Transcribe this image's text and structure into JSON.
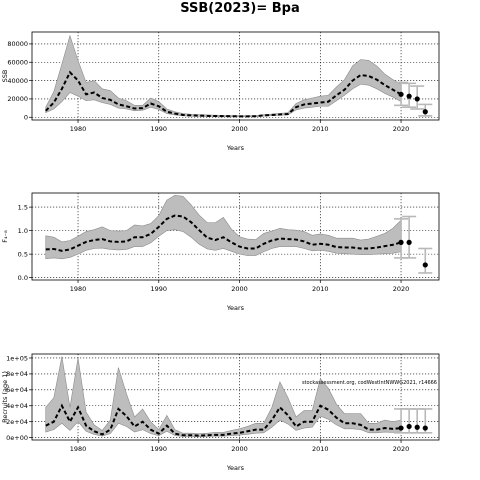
{
  "title": "SSB(2023)= Bpa",
  "colors": {
    "band": "#bdbdbd",
    "band_edge": "#8c8c8c",
    "line": "#000000",
    "errorbar": "#b8b8b8",
    "grid": "#000000"
  },
  "chart_data": [
    {
      "type": "line",
      "name": "ssb",
      "xlabel": "Years",
      "ylabel": "SSB",
      "xlim": [
        1974.3,
        2024.7
      ],
      "ylim": [
        -3000,
        93000
      ],
      "xticks": [
        1980,
        1990,
        2000,
        2010,
        2020
      ],
      "yticks": [
        0,
        20000,
        40000,
        60000,
        80000
      ],
      "ytick_labels": [
        "0",
        "20000",
        "40000",
        "60000",
        "80000"
      ],
      "grid": true,
      "x": [
        1976,
        1977,
        1978,
        1979,
        1980,
        1981,
        1982,
        1983,
        1984,
        1985,
        1986,
        1987,
        1988,
        1989,
        1990,
        1991,
        1992,
        1993,
        1994,
        1995,
        1996,
        1997,
        1998,
        1999,
        2000,
        2001,
        2002,
        2003,
        2004,
        2005,
        2006,
        2007,
        2008,
        2009,
        2010,
        2011,
        2012,
        2013,
        2014,
        2015,
        2016,
        2017,
        2018,
        2019,
        2020
      ],
      "estimate": [
        7000,
        16000,
        31000,
        49000,
        40000,
        25000,
        27000,
        21000,
        19000,
        14000,
        12000,
        9500,
        10000,
        15000,
        12000,
        6000,
        4000,
        2500,
        2000,
        1800,
        1500,
        1300,
        1200,
        1100,
        1000,
        1000,
        1100,
        2000,
        2500,
        3000,
        3500,
        11000,
        14000,
        15000,
        16000,
        17000,
        24000,
        30000,
        40000,
        46000,
        45000,
        41000,
        35000,
        30000,
        25000
      ],
      "lower": [
        5000,
        9000,
        17000,
        27000,
        23000,
        18000,
        19000,
        16000,
        14000,
        10000,
        9000,
        7000,
        7500,
        11000,
        8500,
        4000,
        2500,
        1500,
        1200,
        1000,
        900,
        800,
        700,
        700,
        600,
        600,
        700,
        1300,
        1800,
        2200,
        2600,
        8000,
        10000,
        11000,
        12000,
        12000,
        18000,
        24000,
        31000,
        36000,
        35000,
        31000,
        26000,
        22000,
        17000
      ],
      "upper": [
        11000,
        28000,
        58000,
        89000,
        62000,
        38000,
        40000,
        31000,
        29000,
        21000,
        18000,
        13000,
        13000,
        21000,
        17000,
        9000,
        6000,
        4000,
        3200,
        3000,
        2500,
        2200,
        2000,
        1800,
        1700,
        1700,
        1800,
        3000,
        3500,
        4200,
        5000,
        15000,
        19000,
        21000,
        23000,
        24000,
        33000,
        41000,
        56000,
        63000,
        62000,
        56000,
        47000,
        41000,
        36000
      ],
      "projection": [
        {
          "x": 2020,
          "y": 25000,
          "lo": 13000,
          "hi": 38000
        },
        {
          "x": 2021,
          "y": 23000,
          "lo": 11000,
          "hi": 37000
        },
        {
          "x": 2022,
          "y": 20000,
          "lo": 9000,
          "hi": 34000
        },
        {
          "x": 2023,
          "y": 6000,
          "lo": 1500,
          "hi": 14000
        }
      ]
    },
    {
      "type": "line",
      "name": "f",
      "xlabel": "Years",
      "ylabel": "F₄₋₈",
      "xlim": [
        1974.3,
        2024.7
      ],
      "ylim": [
        -0.05,
        1.8
      ],
      "xticks": [
        1980,
        1990,
        2000,
        2010,
        2020
      ],
      "yticks": [
        0.0,
        0.5,
        1.0,
        1.5
      ],
      "ytick_labels": [
        "0.0",
        "0.5",
        "1.0",
        "1.5"
      ],
      "grid": true,
      "x": [
        1976,
        1977,
        1978,
        1979,
        1980,
        1981,
        1982,
        1983,
        1984,
        1985,
        1986,
        1987,
        1988,
        1989,
        1990,
        1991,
        1992,
        1993,
        1994,
        1995,
        1996,
        1997,
        1998,
        1999,
        2000,
        2001,
        2002,
        2003,
        2004,
        2005,
        2006,
        2007,
        2008,
        2009,
        2010,
        2011,
        2012,
        2013,
        2014,
        2015,
        2016,
        2017,
        2018,
        2019,
        2020
      ],
      "estimate": [
        0.6,
        0.61,
        0.57,
        0.6,
        0.68,
        0.76,
        0.8,
        0.82,
        0.77,
        0.76,
        0.77,
        0.86,
        0.86,
        0.93,
        1.08,
        1.25,
        1.32,
        1.3,
        1.18,
        1.01,
        0.85,
        0.8,
        0.86,
        0.75,
        0.66,
        0.62,
        0.62,
        0.72,
        0.79,
        0.83,
        0.82,
        0.81,
        0.77,
        0.7,
        0.72,
        0.7,
        0.65,
        0.64,
        0.64,
        0.62,
        0.62,
        0.64,
        0.67,
        0.7,
        0.75
      ],
      "lower": [
        0.4,
        0.42,
        0.4,
        0.43,
        0.5,
        0.58,
        0.62,
        0.63,
        0.6,
        0.59,
        0.6,
        0.66,
        0.66,
        0.74,
        0.88,
        1.0,
        1.02,
        0.98,
        0.86,
        0.71,
        0.61,
        0.58,
        0.62,
        0.56,
        0.5,
        0.47,
        0.47,
        0.55,
        0.62,
        0.66,
        0.66,
        0.66,
        0.62,
        0.57,
        0.58,
        0.56,
        0.52,
        0.51,
        0.5,
        0.49,
        0.49,
        0.5,
        0.51,
        0.52,
        0.55
      ],
      "upper": [
        0.89,
        0.86,
        0.76,
        0.79,
        0.88,
        0.98,
        1.02,
        1.08,
        1.0,
        0.99,
        1.0,
        1.12,
        1.1,
        1.15,
        1.32,
        1.65,
        1.75,
        1.73,
        1.55,
        1.33,
        1.17,
        1.17,
        1.28,
        1.03,
        0.87,
        0.82,
        0.81,
        0.94,
        0.99,
        1.05,
        1.02,
        1.01,
        0.98,
        0.9,
        0.93,
        0.9,
        0.84,
        0.84,
        0.84,
        0.8,
        0.82,
        0.88,
        0.94,
        1.05,
        1.22
      ],
      "projection": [
        {
          "x": 2020,
          "y": 0.75,
          "lo": 0.42,
          "hi": 1.25
        },
        {
          "x": 2021,
          "y": 0.75,
          "lo": 0.42,
          "hi": 1.3
        },
        {
          "x": 2023,
          "y": 0.27,
          "lo": 0.1,
          "hi": 0.62
        }
      ]
    },
    {
      "type": "line",
      "name": "recruits",
      "xlabel": "Years",
      "ylabel": "Recruits (age 1)",
      "xlim": [
        1974.3,
        2024.7
      ],
      "ylim": [
        -3000,
        105000
      ],
      "xticks": [
        1980,
        1990,
        2000,
        2010,
        2020
      ],
      "yticks": [
        0,
        20000,
        40000,
        60000,
        80000,
        100000
      ],
      "ytick_labels": [
        "0e+00",
        "2e+04",
        "4e+04",
        "6e+04",
        "8e+04",
        "1e+05"
      ],
      "grid": true,
      "annotation": "stockassessment.org, codWestIntNWWG2021, r14666",
      "x": [
        1976,
        1977,
        1978,
        1979,
        1980,
        1981,
        1982,
        1983,
        1984,
        1985,
        1986,
        1987,
        1988,
        1989,
        1990,
        1991,
        1992,
        1993,
        1994,
        1995,
        1996,
        1997,
        1998,
        1999,
        2000,
        2001,
        2002,
        2003,
        2004,
        2005,
        2006,
        2007,
        2008,
        2009,
        2010,
        2011,
        2012,
        2013,
        2014,
        2015,
        2016,
        2017,
        2018,
        2019,
        2020
      ],
      "estimate": [
        15000,
        20000,
        40000,
        20000,
        38000,
        15000,
        8000,
        4000,
        10000,
        36000,
        27000,
        14000,
        20000,
        10000,
        5000,
        15000,
        5000,
        3000,
        3000,
        2500,
        3000,
        3500,
        3500,
        5000,
        6000,
        8000,
        10000,
        10000,
        22000,
        38000,
        28000,
        14000,
        20000,
        20000,
        40000,
        35000,
        25000,
        18000,
        18000,
        16000,
        10000,
        10000,
        12000,
        11000,
        12000
      ],
      "lower": [
        7000,
        10000,
        18000,
        9000,
        20000,
        8000,
        4000,
        2000,
        5000,
        18000,
        14000,
        7000,
        10000,
        5000,
        2500,
        8000,
        2500,
        1500,
        1500,
        1200,
        1500,
        1800,
        1800,
        2600,
        3200,
        4200,
        5500,
        6000,
        13000,
        22000,
        17000,
        9000,
        12000,
        13000,
        27000,
        23000,
        16000,
        11000,
        11000,
        10000,
        6000,
        6000,
        7000,
        6500,
        7000
      ],
      "upper": [
        38000,
        50000,
        102000,
        38000,
        100000,
        32000,
        16000,
        9000,
        22000,
        88000,
        55000,
        26000,
        36000,
        20000,
        10000,
        28000,
        10000,
        5500,
        5500,
        5000,
        5500,
        6500,
        6500,
        9000,
        11000,
        14000,
        18000,
        18000,
        38000,
        70000,
        50000,
        26000,
        34000,
        34000,
        74000,
        62000,
        42000,
        30000,
        30000,
        30000,
        18000,
        18000,
        22000,
        20000,
        22000
      ],
      "projection": [
        {
          "x": 2020,
          "y": 12000,
          "lo": 6000,
          "hi": 36000
        },
        {
          "x": 2021,
          "y": 14000,
          "lo": 6000,
          "hi": 36000
        },
        {
          "x": 2022,
          "y": 13000,
          "lo": 6000,
          "hi": 36000
        },
        {
          "x": 2023,
          "y": 12000,
          "lo": 6000,
          "hi": 36000
        }
      ]
    }
  ]
}
